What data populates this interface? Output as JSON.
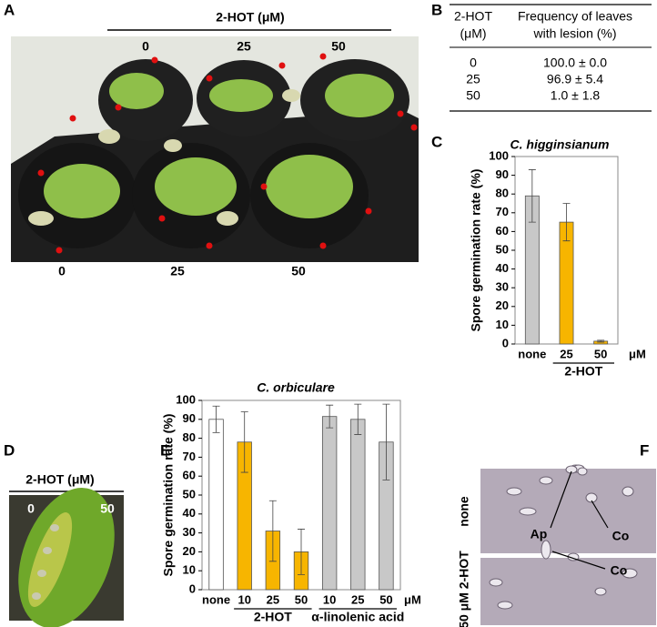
{
  "panel_labels": [
    "A",
    "B",
    "C",
    "D",
    "E",
    "F"
  ],
  "panel_a": {
    "treatment": "2-HOT (μM)",
    "top_labels": [
      "0",
      "25",
      "50"
    ],
    "bottom_labels": [
      "0",
      "25",
      "50"
    ]
  },
  "table": {
    "header": [
      [
        "2-HOT",
        "(μM)"
      ],
      [
        "Frequency of leaves",
        "with lesion (%)"
      ]
    ],
    "rows": [
      [
        "0",
        "100.0 ± 0.0"
      ],
      [
        "25",
        "96.9 ± 5.4"
      ],
      [
        "50",
        "1.0 ± 1.8"
      ]
    ]
  },
  "chart_data": [
    {
      "type": "bar",
      "title": "C. higginsianum",
      "y_label": "Spore germination rate (%)",
      "categories": [
        "none",
        "25",
        "50"
      ],
      "category_groups": [
        null,
        "2-HOT",
        "2-HOT"
      ],
      "x_unit": "μM",
      "values": [
        79,
        65,
        1.5
      ],
      "errors": [
        14,
        10,
        0.5
      ],
      "colors": [
        "#c8c8c8",
        "#f7b500",
        "#f7b500"
      ],
      "ylim": [
        0,
        100
      ],
      "yticks": [
        0,
        10,
        20,
        30,
        40,
        50,
        60,
        70,
        80,
        90,
        100
      ]
    },
    {
      "type": "bar",
      "title": "C. orbiculare",
      "y_label": "Spore germination rate (%)",
      "categories": [
        "none",
        "10",
        "25",
        "50",
        "10",
        "25",
        "50"
      ],
      "category_groups": [
        null,
        "2-HOT",
        "2-HOT",
        "2-HOT",
        "α-linolenic acid",
        "α-linolenic acid",
        "α-linolenic acid"
      ],
      "x_unit": "μM",
      "values": [
        90,
        78,
        31,
        20,
        91.5,
        90,
        78
      ],
      "errors": [
        7,
        16,
        16,
        12,
        6,
        8,
        20
      ],
      "colors": [
        "#ffffff",
        "#f7b500",
        "#f7b500",
        "#f7b500",
        "#c8c8c8",
        "#c8c8c8",
        "#c8c8c8"
      ],
      "ylim": [
        0,
        100
      ],
      "yticks": [
        0,
        10,
        20,
        30,
        40,
        50,
        60,
        70,
        80,
        90,
        100
      ]
    }
  ],
  "panel_d": {
    "treatment": "2-HOT (μM)",
    "labels": [
      "0",
      "50"
    ]
  },
  "panel_f": {
    "row_labels": [
      "none",
      "50 μM 2-HOT"
    ],
    "annotations": [
      "Ap",
      "Co",
      "Co"
    ]
  }
}
